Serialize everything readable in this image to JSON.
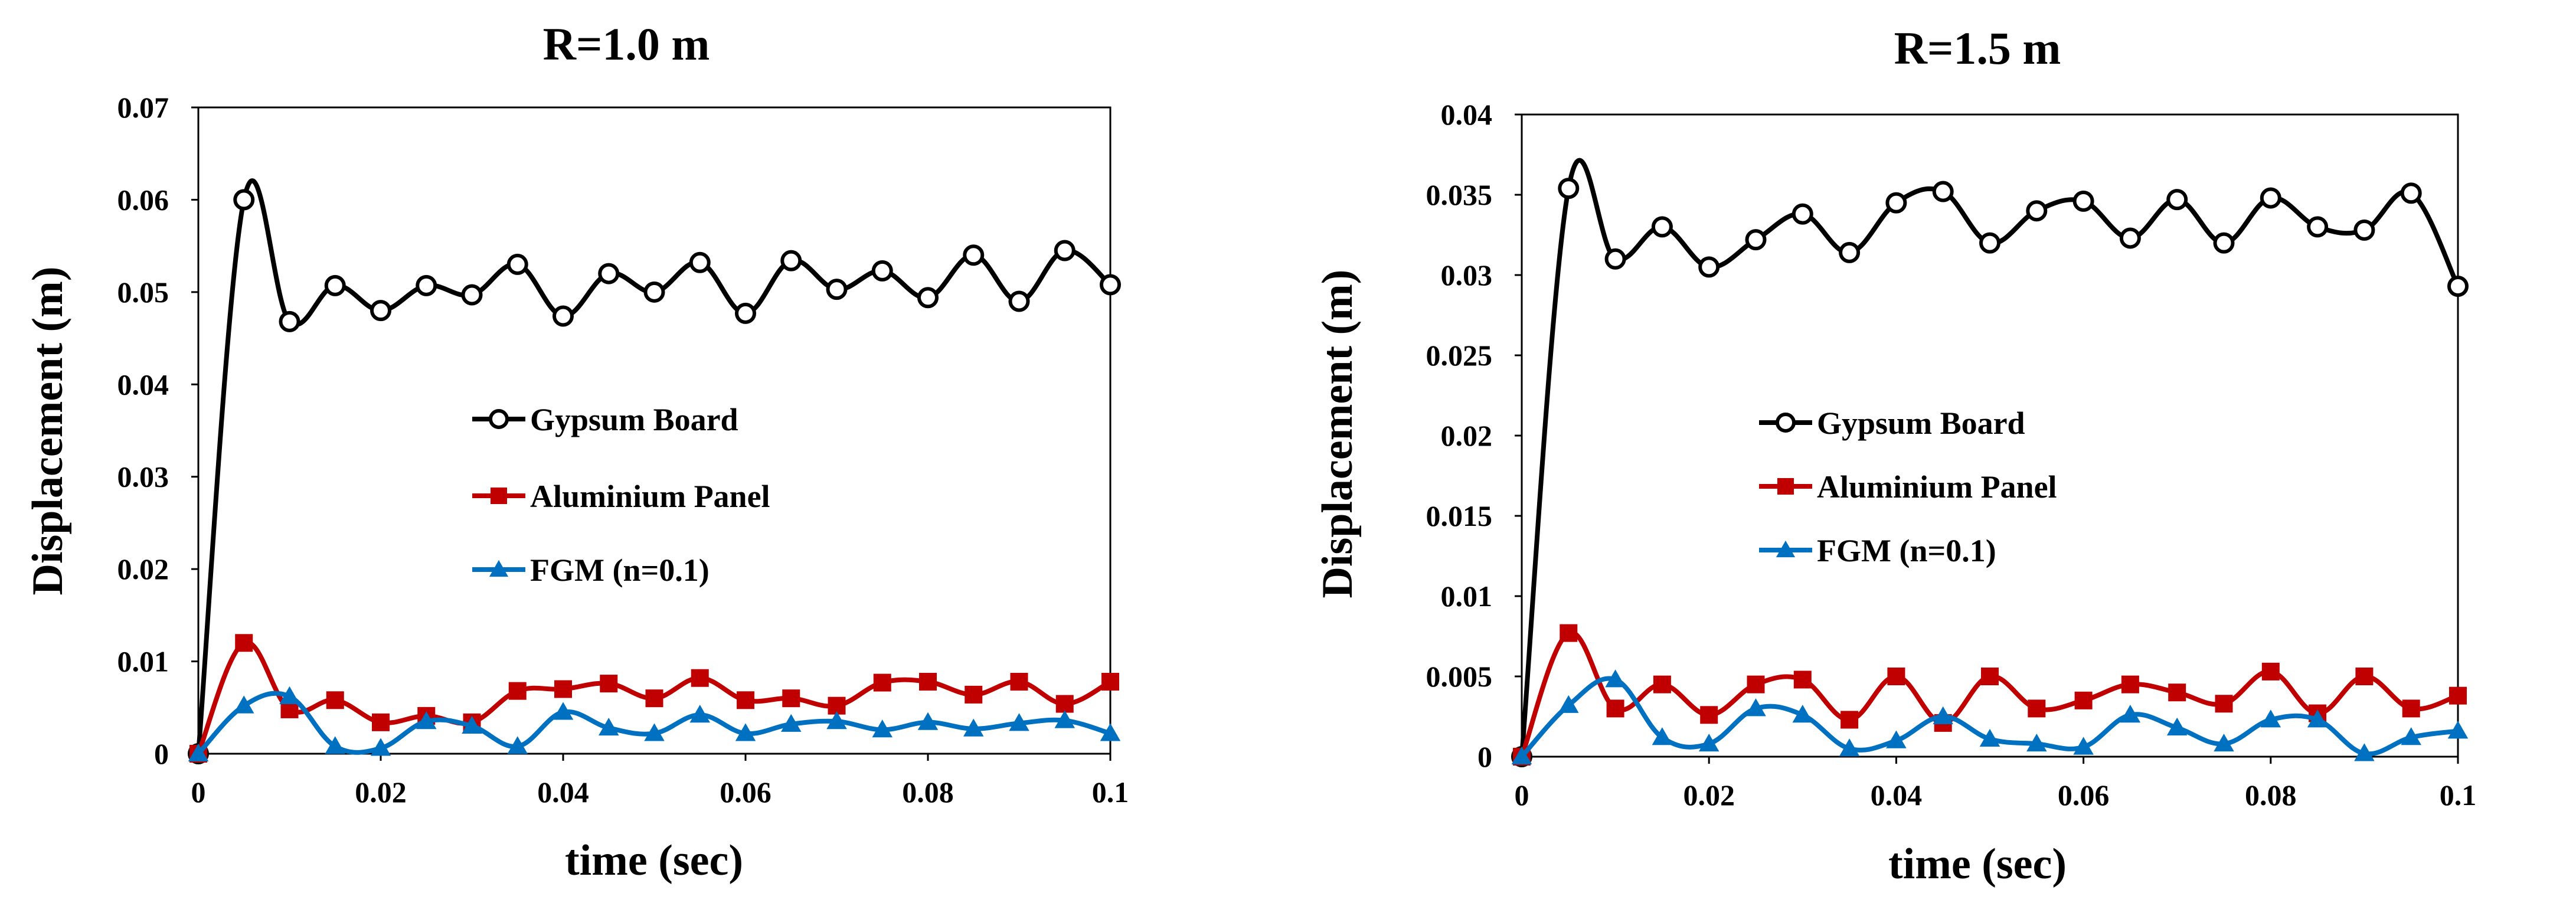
{
  "chart_data": [
    {
      "type": "line",
      "title": "R=1.0 m",
      "xlabel": "time (sec)",
      "ylabel": "Displacement (m)",
      "xlim": [
        0,
        0.1
      ],
      "ylim": [
        0,
        0.07
      ],
      "xticks": [
        0,
        0.02,
        0.04,
        0.06,
        0.08,
        0.1
      ],
      "xtick_labels": [
        "0",
        "0.02",
        "0.04",
        "0.06",
        "0.08",
        "0.1"
      ],
      "yticks": [
        0,
        0.01,
        0.02,
        0.03,
        0.04,
        0.05,
        0.06,
        0.07
      ],
      "ytick_labels": [
        "0",
        "0.01",
        "0.02",
        "0.03",
        "0.04",
        "0.05",
        "0.06",
        "0.07"
      ],
      "grid": false,
      "legend_position": "center",
      "x": [
        0,
        0.005,
        0.01,
        0.015,
        0.02,
        0.025,
        0.03,
        0.035,
        0.04,
        0.045,
        0.05,
        0.055,
        0.06,
        0.065,
        0.07,
        0.075,
        0.08,
        0.085,
        0.09,
        0.095,
        0.1
      ],
      "series": [
        {
          "name": "Gypsum Board",
          "color": "#000000",
          "marker": "circle-open",
          "values": [
            0,
            0.06,
            0.0468,
            0.0507,
            0.048,
            0.0507,
            0.0497,
            0.053,
            0.0474,
            0.052,
            0.05,
            0.0532,
            0.0477,
            0.0534,
            0.0503,
            0.0523,
            0.0494,
            0.054,
            0.049,
            0.0545,
            0.0508
          ]
        },
        {
          "name": "Aluminium Panel",
          "color": "#C00000",
          "marker": "square",
          "values": [
            0,
            0.012,
            0.0048,
            0.0058,
            0.0034,
            0.0041,
            0.0034,
            0.0068,
            0.007,
            0.0076,
            0.006,
            0.0082,
            0.0058,
            0.006,
            0.0052,
            0.0077,
            0.0078,
            0.0064,
            0.0078,
            0.0054,
            0.0078
          ]
        },
        {
          "name": "FGM (n=0.1)",
          "color": "#0070C0",
          "marker": "triangle",
          "values": [
            0,
            0.0052,
            0.0062,
            0.0008,
            0.0006,
            0.0035,
            0.003,
            0.0008,
            0.0045,
            0.0028,
            0.0022,
            0.0042,
            0.0022,
            0.0032,
            0.0035,
            0.0026,
            0.0034,
            0.0027,
            0.0033,
            0.0036,
            0.0022
          ]
        }
      ]
    },
    {
      "type": "line",
      "title": "R=1.5 m",
      "xlabel": "time (sec)",
      "ylabel": "Displacement (m)",
      "xlim": [
        0,
        0.1
      ],
      "ylim": [
        0,
        0.04
      ],
      "xticks": [
        0,
        0.02,
        0.04,
        0.06,
        0.08,
        0.1
      ],
      "xtick_labels": [
        "0",
        "0.02",
        "0.04",
        "0.06",
        "0.08",
        "0.1"
      ],
      "yticks": [
        0,
        0.005,
        0.01,
        0.015,
        0.02,
        0.025,
        0.03,
        0.035,
        0.04
      ],
      "ytick_labels": [
        "0",
        "0.005",
        "0.01",
        "0.015",
        "0.02",
        "0.025",
        "0.03",
        "0.035",
        "0.04"
      ],
      "grid": false,
      "legend_position": "center",
      "x": [
        0,
        0.005,
        0.01,
        0.015,
        0.02,
        0.025,
        0.03,
        0.035,
        0.04,
        0.045,
        0.05,
        0.055,
        0.06,
        0.065,
        0.07,
        0.075,
        0.08,
        0.085,
        0.09,
        0.095,
        0.1
      ],
      "series": [
        {
          "name": "Gypsum Board",
          "color": "#000000",
          "marker": "circle-open",
          "values": [
            0,
            0.0354,
            0.031,
            0.033,
            0.0305,
            0.0322,
            0.0338,
            0.0314,
            0.0345,
            0.0352,
            0.032,
            0.034,
            0.0346,
            0.0323,
            0.0347,
            0.032,
            0.0348,
            0.033,
            0.0328,
            0.0351,
            0.0293
          ]
        },
        {
          "name": "Aluminium Panel",
          "color": "#C00000",
          "marker": "square",
          "values": [
            0,
            0.0077,
            0.003,
            0.0045,
            0.0026,
            0.0045,
            0.0048,
            0.0023,
            0.005,
            0.0021,
            0.005,
            0.003,
            0.0035,
            0.0045,
            0.004,
            0.0033,
            0.0053,
            0.0027,
            0.005,
            0.003,
            0.0038
          ]
        },
        {
          "name": "FGM (n=0.1)",
          "color": "#0070C0",
          "marker": "triangle",
          "values": [
            0,
            0.0032,
            0.0048,
            0.0012,
            0.0008,
            0.003,
            0.0026,
            0.0005,
            0.001,
            0.0025,
            0.0011,
            0.0008,
            0.0006,
            0.0026,
            0.0018,
            0.0008,
            0.0023,
            0.0023,
            0.0002,
            0.0012,
            0.0016
          ]
        }
      ]
    }
  ]
}
